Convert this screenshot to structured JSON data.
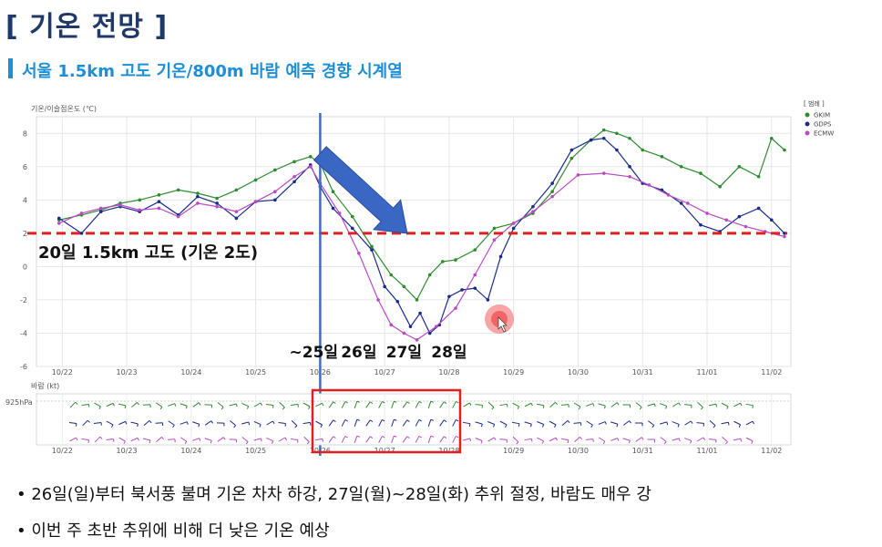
{
  "page": {
    "title": "[ 기온 전망 ]",
    "subtitle": "서울 1.5km 고도 기온/800m 바람 예측 경향 시계열",
    "bullets": [
      "26일(일)부터 북서풍 불며 기온 차차 하강, 27일(월)~28일(화) 추위 절정, 바람도 매우 강",
      "이번 주 초반 추위에 비해 더 낮은 기온 예상"
    ]
  },
  "chart_data": {
    "type": "line",
    "ylabel": "기온/이슬점온도 (℃)",
    "ylim": [
      -6,
      9
    ],
    "yticks": [
      -6,
      -4,
      -2,
      0,
      2,
      4,
      6,
      8
    ],
    "xlim": [
      21.6,
      33.3
    ],
    "xticks": [
      {
        "label": "10/22",
        "x": 22
      },
      {
        "label": "10/23",
        "x": 23
      },
      {
        "label": "10/24",
        "x": 24
      },
      {
        "label": "10/25",
        "x": 25
      },
      {
        "label": "10/26",
        "x": 26
      },
      {
        "label": "10/27",
        "x": 27
      },
      {
        "label": "10/28",
        "x": 28
      },
      {
        "label": "10/29",
        "x": 29
      },
      {
        "label": "10/30",
        "x": 30
      },
      {
        "label": "10/31",
        "x": 31
      },
      {
        "label": "11/01",
        "x": 32
      },
      {
        "label": "11/02",
        "x": 33
      }
    ],
    "legend_title": "[ 범례 ]",
    "legend_position": "top-right",
    "series": [
      {
        "name": "GKIM",
        "color": "#2e8b2e",
        "x": [
          21.95,
          22.3,
          22.6,
          22.9,
          23.2,
          23.5,
          23.8,
          24.1,
          24.4,
          24.7,
          25.0,
          25.3,
          25.6,
          25.85,
          26.0,
          26.2,
          26.5,
          26.8,
          27.1,
          27.3,
          27.5,
          27.7,
          27.9,
          28.1,
          28.4,
          28.7,
          29.0,
          29.3,
          29.6,
          29.9,
          30.2,
          30.4,
          30.6,
          30.8,
          31.0,
          31.3,
          31.6,
          31.9,
          32.2,
          32.5,
          32.8,
          33.0,
          33.2
        ],
        "y": [
          2.8,
          3.1,
          3.4,
          3.8,
          4.0,
          4.3,
          4.6,
          4.4,
          4.1,
          4.6,
          5.2,
          5.8,
          6.3,
          6.6,
          6.2,
          4.5,
          3.0,
          1.2,
          -0.5,
          -1.2,
          -2.0,
          -0.5,
          0.3,
          0.4,
          1.0,
          2.3,
          2.6,
          3.2,
          4.5,
          6.5,
          7.6,
          8.2,
          8.0,
          7.7,
          7.0,
          6.6,
          6.0,
          5.6,
          4.8,
          6.0,
          5.4,
          7.7,
          7.0
        ]
      },
      {
        "name": "GDPS",
        "color": "#1a2b8c",
        "x": [
          21.95,
          22.3,
          22.6,
          22.9,
          23.2,
          23.5,
          23.8,
          24.1,
          24.4,
          24.7,
          25.0,
          25.3,
          25.6,
          25.85,
          26.0,
          26.2,
          26.5,
          26.8,
          27.0,
          27.2,
          27.4,
          27.55,
          27.7,
          27.85,
          28.0,
          28.2,
          28.4,
          28.6,
          28.8,
          29.0,
          29.3,
          29.6,
          29.9,
          30.2,
          30.4,
          30.6,
          30.8,
          31.0,
          31.3,
          31.6,
          31.9,
          32.2,
          32.5,
          32.8,
          33.0,
          33.2
        ],
        "y": [
          2.9,
          2.0,
          3.3,
          3.6,
          3.3,
          3.9,
          3.1,
          4.2,
          3.8,
          2.9,
          3.9,
          4.0,
          5.1,
          6.1,
          4.8,
          3.5,
          2.3,
          1.0,
          -1.2,
          -2.1,
          -3.6,
          -2.8,
          -4.0,
          -3.5,
          -1.8,
          -1.4,
          -1.3,
          -2.0,
          0.6,
          2.3,
          3.6,
          5.0,
          7.0,
          7.6,
          7.7,
          7.0,
          6.0,
          5.0,
          4.6,
          3.8,
          2.5,
          2.1,
          3.0,
          3.5,
          2.8,
          2.0
        ]
      },
      {
        "name": "ECMW",
        "color": "#b84bc4",
        "x": [
          21.95,
          22.3,
          22.6,
          22.9,
          23.2,
          23.5,
          23.8,
          24.1,
          24.4,
          24.7,
          25.0,
          25.3,
          25.6,
          25.85,
          26.0,
          26.3,
          26.6,
          26.9,
          27.1,
          27.3,
          27.5,
          27.8,
          28.1,
          28.4,
          28.7,
          29.0,
          29.3,
          29.6,
          30.0,
          30.4,
          30.8,
          31.1,
          31.4,
          31.7,
          32.0,
          32.3,
          32.6,
          32.9,
          33.2
        ],
        "y": [
          2.6,
          3.2,
          3.5,
          3.7,
          3.4,
          3.5,
          3.0,
          3.8,
          3.6,
          3.3,
          3.9,
          4.5,
          5.4,
          6.0,
          5.0,
          3.2,
          0.8,
          -2.0,
          -3.5,
          -4.0,
          -4.4,
          -3.6,
          -2.5,
          -0.5,
          1.6,
          2.6,
          3.3,
          4.2,
          5.5,
          5.6,
          5.4,
          4.9,
          4.3,
          3.8,
          3.2,
          2.8,
          2.4,
          2.1,
          1.8
        ]
      }
    ],
    "annotations": {
      "threshold_value": 2,
      "threshold_label": "20일 1.5km 고도 (기온 2도)",
      "vertical_marker_x": 26,
      "day_labels": [
        {
          "text": "~25일",
          "x": 25.9
        },
        {
          "text": "26일",
          "x": 26.6
        },
        {
          "text": "27일",
          "x": 27.3
        },
        {
          "text": "28일",
          "x": 28.0
        }
      ],
      "arrow_from": [
        26.0,
        6.8
      ],
      "arrow_to": [
        27.35,
        2.0
      ]
    },
    "wind_panel": {
      "title": "바람 (kt)",
      "level_label": "925hPa"
    }
  },
  "colors": {
    "title": "#1f3a68",
    "subtitle": "#1d8fd6",
    "threshold": "#e02020",
    "marker": "#3a6fc8",
    "arrow": "#3a66c4"
  }
}
